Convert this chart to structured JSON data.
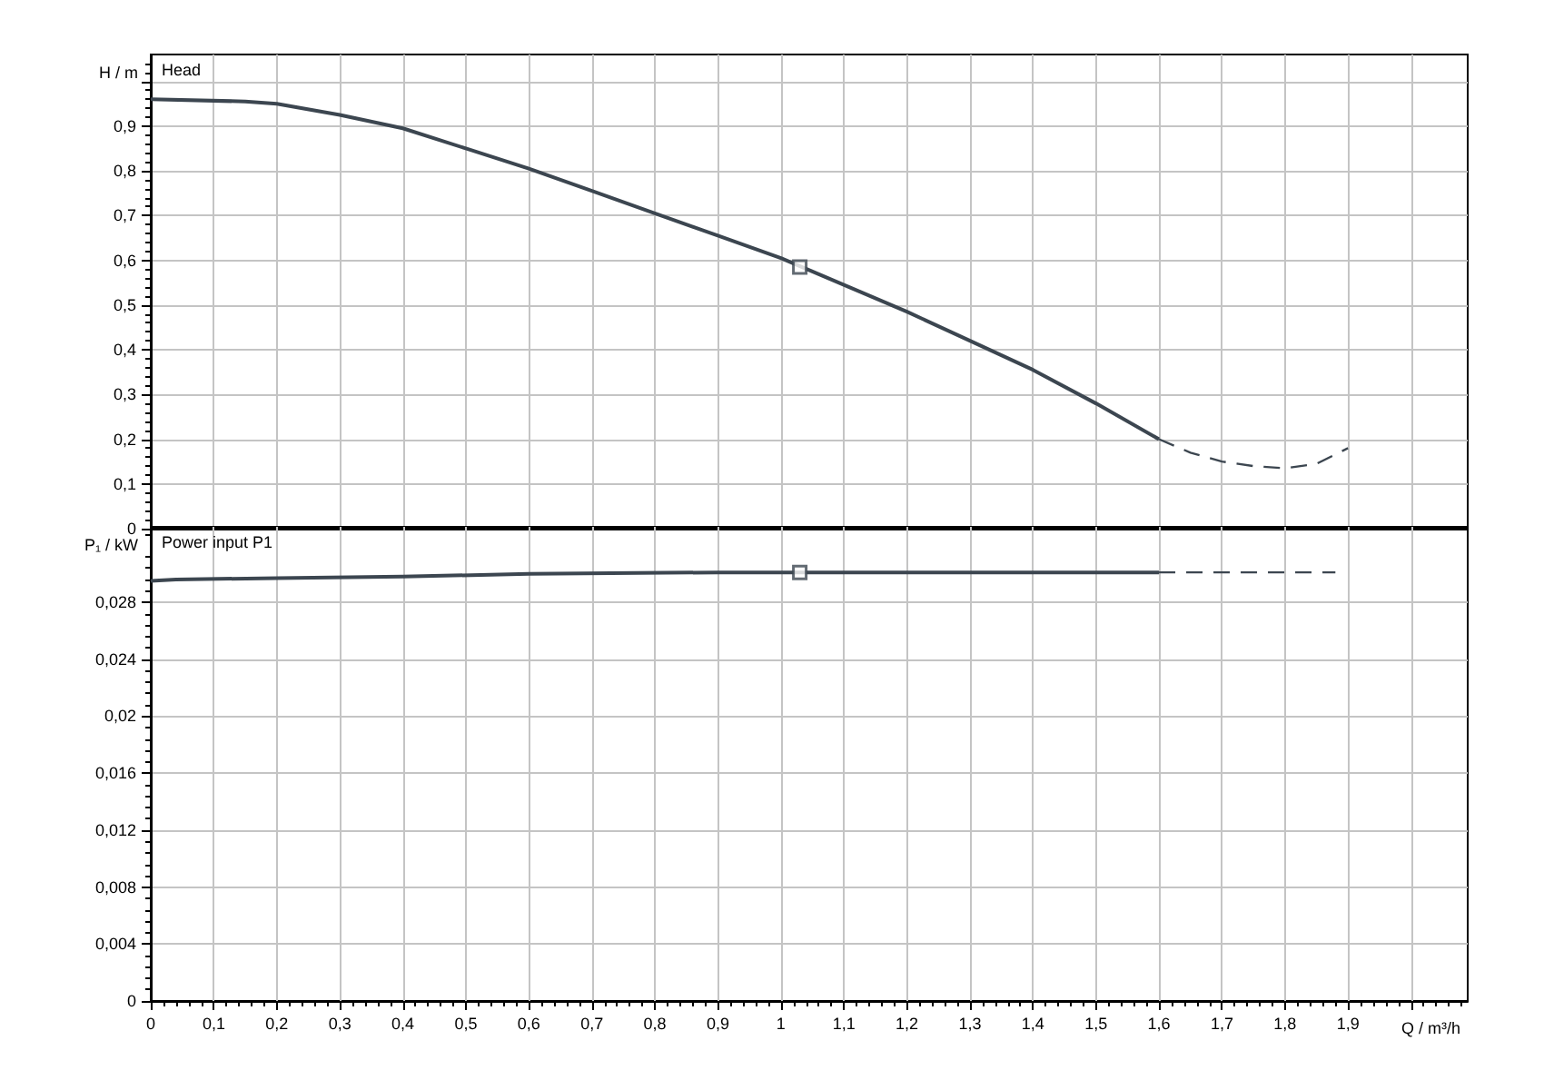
{
  "chart_data": [
    {
      "type": "line",
      "title": "Head",
      "ylabel": "H / m",
      "xlim": [
        0,
        2.09
      ],
      "xticks": [
        0,
        0.1,
        0.2,
        0.3,
        0.4,
        0.5,
        0.6,
        0.7,
        0.8,
        0.9,
        1,
        1.1,
        1.2,
        1.3,
        1.4,
        1.5,
        1.6,
        1.7,
        1.8,
        1.9,
        2
      ],
      "ylim": [
        0,
        1.06
      ],
      "yticks": [
        0,
        {
          "value": 0.1,
          "label": "0,1"
        },
        {
          "value": 0.2,
          "label": "0,2"
        },
        {
          "value": 0.3,
          "label": "0,3"
        },
        {
          "value": 0.4,
          "label": "0,4"
        },
        {
          "value": 0.5,
          "label": "0,5"
        },
        {
          "value": 0.6,
          "label": "0,6"
        },
        {
          "value": 0.7,
          "label": "0,7"
        },
        {
          "value": 0.8,
          "label": "0,8"
        },
        {
          "value": 0.9,
          "label": "0,9"
        },
        {
          "value": 1,
          "label": null
        }
      ],
      "tick_labels": "y",
      "grid": true,
      "series": [
        {
          "color": "#3c4650",
          "line_style": "solid",
          "marker": "none",
          "x": [
            0,
            0.15,
            0.2,
            0.3,
            0.4,
            0.5,
            0.6,
            0.7,
            0.8,
            0.9,
            1,
            1.1,
            1.2,
            1.3,
            1.4,
            1.5,
            1.6
          ],
          "values": [
            0.96,
            0.955,
            0.95,
            0.925,
            0.895,
            0.85,
            0.805,
            0.755,
            0.705,
            0.655,
            0.605,
            0.545,
            0.485,
            0.42,
            0.355,
            0.28,
            0.2
          ]
        },
        {
          "color": "#3c4650",
          "line_style": "dashed",
          "marker": "none",
          "x": [
            1.6,
            1.65,
            1.7,
            1.75,
            1.8,
            1.85,
            1.9
          ],
          "values": [
            0.2,
            0.17,
            0.15,
            0.14,
            0.135,
            0.145,
            0.18
          ]
        },
        {
          "type": "scatter",
          "color": "#3c4650",
          "marker": "square",
          "x": [
            1.03
          ],
          "values": [
            0.585
          ]
        }
      ]
    },
    {
      "type": "line",
      "title": "Power input P1",
      "ylabel": "P₁ / kW",
      "xlabel": "Q / m³/h",
      "xlim": [
        0,
        2.09
      ],
      "xticks": [
        0,
        {
          "value": 0.1,
          "label": "0,1"
        },
        {
          "value": 0.2,
          "label": "0,2"
        },
        {
          "value": 0.3,
          "label": "0,3"
        },
        {
          "value": 0.4,
          "label": "0,4"
        },
        {
          "value": 0.5,
          "label": "0,5"
        },
        {
          "value": 0.6,
          "label": "0,6"
        },
        {
          "value": 0.7,
          "label": "0,7"
        },
        {
          "value": 0.8,
          "label": "0,8"
        },
        {
          "value": 0.9,
          "label": "0,9"
        },
        1,
        {
          "value": 1.1,
          "label": "1,1"
        },
        {
          "value": 1.2,
          "label": "1,2"
        },
        {
          "value": 1.3,
          "label": "1,3"
        },
        {
          "value": 1.4,
          "label": "1,4"
        },
        {
          "value": 1.5,
          "label": "1,5"
        },
        {
          "value": 1.6,
          "label": "1,6"
        },
        {
          "value": 1.7,
          "label": "1,7"
        },
        {
          "value": 1.8,
          "label": "1,8"
        },
        {
          "value": 1.9,
          "label": "1,9"
        },
        {
          "value": 2,
          "label": null
        }
      ],
      "ylim": [
        0,
        0.0333
      ],
      "yticks": [
        0,
        {
          "value": 0.004,
          "label": "0,004"
        },
        {
          "value": 0.008,
          "label": "0,008"
        },
        {
          "value": 0.012,
          "label": "0,012"
        },
        {
          "value": 0.016,
          "label": "0,016"
        },
        {
          "value": 0.02,
          "label": "0,02"
        },
        {
          "value": 0.024,
          "label": "0,024"
        },
        {
          "value": 0.028,
          "label": "0,028"
        }
      ],
      "grid": true,
      "series": [
        {
          "color": "#3c4650",
          "line_style": "solid",
          "marker": "none",
          "x": [
            0,
            0.04,
            0.2,
            0.4,
            0.6,
            0.9,
            1.6
          ],
          "values": [
            0.0295,
            0.0296,
            0.0297,
            0.0298,
            0.03,
            0.0301,
            0.0301
          ]
        },
        {
          "color": "#3c4650",
          "line_style": "dashed",
          "marker": "none",
          "x": [
            1.6,
            1.88
          ],
          "values": [
            0.0301,
            0.0301
          ]
        },
        {
          "type": "scatter",
          "color": "#3c4650",
          "marker": "square",
          "x": [
            1.03
          ],
          "values": [
            0.0301
          ]
        }
      ]
    }
  ]
}
